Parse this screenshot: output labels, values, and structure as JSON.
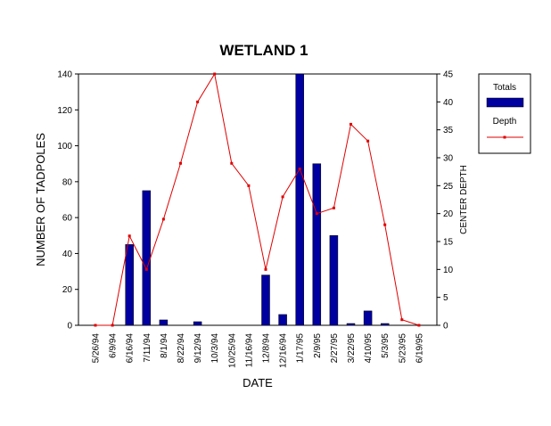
{
  "chart_data": {
    "type": "bar+line",
    "title": "WETLAND 1",
    "xlabel": "DATE",
    "ylabel": "NUMBER OF TADPOLES",
    "y2label": "CENTER DEPTH",
    "ylim": [
      0,
      140
    ],
    "y2lim": [
      0,
      45
    ],
    "yticks": [
      0,
      20,
      40,
      60,
      80,
      100,
      120,
      140
    ],
    "y2ticks": [
      0,
      5,
      10,
      15,
      20,
      25,
      30,
      35,
      40,
      45
    ],
    "categories": [
      "5/26/94",
      "6/9/94",
      "6/16/94",
      "7/11/94",
      "8/1/94",
      "8/22/94",
      "9/12/94",
      "10/3/94",
      "10/25/94",
      "11/16/94",
      "12/8/94",
      "12/16/94",
      "1/17/95",
      "2/9/95",
      "2/27/95",
      "3/22/95",
      "4/10/95",
      "5/3/95",
      "5/23/95",
      "6/19/95"
    ],
    "series": [
      {
        "name": "Totals",
        "type": "bar",
        "axis": "left",
        "color": "#0000a0",
        "values": [
          0,
          0,
          45,
          75,
          3,
          0,
          2,
          0,
          0,
          0,
          28,
          6,
          140,
          90,
          50,
          1,
          8,
          1,
          0,
          0
        ]
      },
      {
        "name": "Depth",
        "type": "line",
        "axis": "right",
        "color": "#e00000",
        "values": [
          0,
          0,
          16,
          10,
          19,
          29,
          40,
          45,
          29,
          25,
          10,
          23,
          28,
          20,
          21,
          36,
          33,
          18,
          1,
          0
        ]
      }
    ],
    "legend_position": "top-right",
    "grid": false
  }
}
